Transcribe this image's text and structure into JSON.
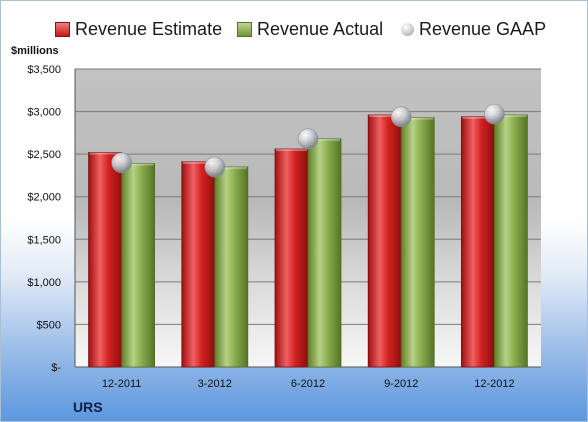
{
  "chart_data": {
    "type": "bar",
    "categories": [
      "12-2011",
      "3-2012",
      "6-2012",
      "9-2012",
      "12-2012"
    ],
    "series": [
      {
        "name": "Revenue Estimate",
        "values": [
          2520,
          2410,
          2560,
          2960,
          2940
        ],
        "color": "#d02020"
      },
      {
        "name": "Revenue Actual",
        "values": [
          2390,
          2350,
          2680,
          2930,
          2960
        ],
        "color": "#8cae4f"
      },
      {
        "name": "Revenue GAAP",
        "values": [
          2400,
          2350,
          2680,
          2940,
          2970
        ],
        "color": "#c9ccd2",
        "marker": "sphere"
      }
    ],
    "ylabel": "$millions",
    "ylim": [
      0,
      3500
    ],
    "yticks": [
      0,
      500,
      1000,
      1500,
      2000,
      2500,
      3000,
      3500
    ],
    "ytick_labels": [
      "$-",
      "$500",
      "$1,000",
      "$1,500",
      "$2,000",
      "$2,500",
      "$3,000",
      "$3,500"
    ],
    "grid": true,
    "legend_position": "top",
    "company": "URS"
  }
}
